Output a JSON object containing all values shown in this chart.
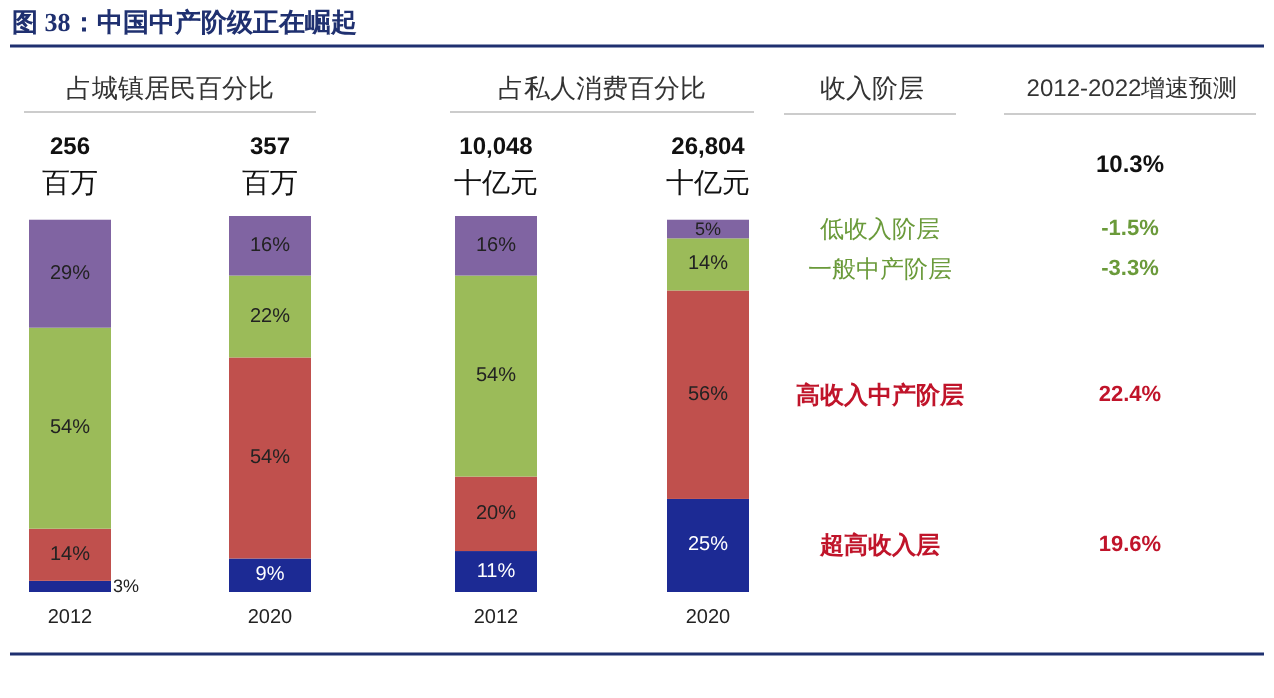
{
  "chart_data": [
    {
      "type": "bar",
      "stacked": true,
      "title": "图 38：中国中产阶级正在崛起",
      "subtitle": "占城镇居民百分比",
      "categories": [
        "2012",
        "2020"
      ],
      "annotations": [
        "256 百万",
        "357 百万"
      ],
      "series": [
        {
          "color": "#1c2a94",
          "values": [
            3,
            9
          ],
          "value_labels": [
            "3%",
            "9%"
          ]
        },
        {
          "color": "#c0504d",
          "values": [
            14,
            54
          ],
          "value_labels": [
            "14%",
            "54%"
          ]
        },
        {
          "color": "#9bbb59",
          "values": [
            54,
            22
          ],
          "value_labels": [
            "54%",
            "22%"
          ]
        },
        {
          "color": "#8064a2",
          "values": [
            29,
            16
          ],
          "value_labels": [
            "29%",
            "16%"
          ]
        }
      ],
      "legend": false
    },
    {
      "type": "bar",
      "stacked": true,
      "subtitle": "占私人消费百分比",
      "categories": [
        "2012",
        "2020"
      ],
      "series": [
        {
          "name": "超高收入层",
          "color": "#1c2a94",
          "values": [
            11,
            25
          ],
          "value_labels": [
            "11%",
            "25%"
          ]
        },
        {
          "name": "高收入中产阶层",
          "color": "#c0504d",
          "values": [
            20,
            56
          ],
          "value_labels": [
            "20%",
            "56%"
          ]
        },
        {
          "name": "一般中产阶层",
          "color": "#9bbb59",
          "values": [
            54,
            14
          ],
          "value_labels": [
            "54%",
            "14%"
          ]
        },
        {
          "name": "低收入阶层",
          "color": "#8064a2",
          "values": [
            16,
            5
          ],
          "value_labels": [
            "16%",
            "5%"
          ]
        }
      ],
      "legend": "right",
      "annotations": [
        "10,048 十亿元",
        "26,804 十亿元",
        "收入阶层",
        "2012-2022增速预测",
        "10.3%",
        "-1.5%",
        "-3.3%",
        "22.4%",
        "19.6%"
      ]
    }
  ]
}
